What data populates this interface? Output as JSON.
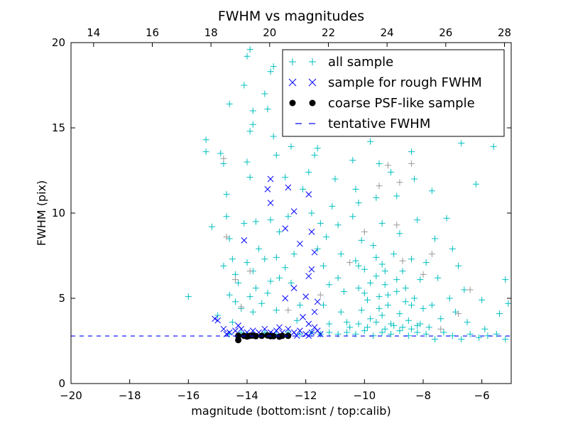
{
  "chart_data": {
    "type": "scatter",
    "title": "FWHM vs magnitudes",
    "xlabel": "magnitude (bottom:isnt / top:calib)",
    "ylabel": "FWHM (pix)",
    "xlim": [
      -20,
      -5
    ],
    "ylim": [
      0,
      20
    ],
    "top_xlim": [
      13.23,
      28.23
    ],
    "xticks": [
      -20,
      -18,
      -16,
      -14,
      -12,
      -10,
      -8,
      -6
    ],
    "xtick_labels": [
      "−20",
      "−18",
      "−16",
      "−14",
      "−12",
      "−10",
      "−8",
      "−6"
    ],
    "top_xticks": [
      14,
      16,
      18,
      20,
      22,
      24,
      26,
      28
    ],
    "top_xtick_labels": [
      "14",
      "16",
      "18",
      "20",
      "22",
      "24",
      "26",
      "28"
    ],
    "yticks": [
      0,
      5,
      10,
      15,
      20
    ],
    "ytick_labels": [
      "0",
      "5",
      "10",
      "15",
      "20"
    ],
    "grid": false,
    "legend_position": "top-right",
    "colors": {
      "all": "#00BFBF",
      "rough": "#0000FF",
      "coarse": "#000000",
      "tentative": "#0000FF",
      "faint": "#999999"
    },
    "tentative_fwhm": 2.79,
    "series": [
      {
        "name": "all sample",
        "marker": "+",
        "color": "#00BFBF",
        "points": [
          [
            -16.0,
            5.1
          ],
          [
            -15.4,
            14.3
          ],
          [
            -15.4,
            13.6
          ],
          [
            -15.2,
            9.2
          ],
          [
            -15.0,
            4.0
          ],
          [
            -14.9,
            13.5
          ],
          [
            -14.8,
            12.9
          ],
          [
            -14.7,
            11.1
          ],
          [
            -14.6,
            16.4
          ],
          [
            -14.7,
            9.8
          ],
          [
            -14.6,
            8.5
          ],
          [
            -14.8,
            6.9
          ],
          [
            -14.5,
            7.3
          ],
          [
            -14.4,
            6.4
          ],
          [
            -14.3,
            5.9
          ],
          [
            -14.6,
            5.2
          ],
          [
            -14.4,
            4.8
          ],
          [
            -14.2,
            4.4
          ],
          [
            -14.5,
            3.6
          ],
          [
            -14.0,
            19.2
          ],
          [
            -14.1,
            17.5
          ],
          [
            -13.9,
            19.6
          ],
          [
            -13.8,
            15.2
          ],
          [
            -13.9,
            14.8
          ],
          [
            -13.8,
            16.0
          ],
          [
            -14.0,
            13.0
          ],
          [
            -13.9,
            12.1
          ],
          [
            -14.1,
            9.4
          ],
          [
            -13.7,
            9.5
          ],
          [
            -14.0,
            7.1
          ],
          [
            -13.8,
            6.6
          ],
          [
            -13.6,
            7.9
          ],
          [
            -13.7,
            5.6
          ],
          [
            -13.9,
            5.1
          ],
          [
            -13.5,
            4.7
          ],
          [
            -13.8,
            4.2
          ],
          [
            -13.4,
            17.0
          ],
          [
            -13.2,
            18.3
          ],
          [
            -13.1,
            18.6
          ],
          [
            -13.3,
            16.1
          ],
          [
            -13.1,
            14.5
          ],
          [
            -13.0,
            13.4
          ],
          [
            -13.2,
            9.6
          ],
          [
            -12.9,
            8.9
          ],
          [
            -13.4,
            7.3
          ],
          [
            -13.0,
            7.4
          ],
          [
            -13.2,
            6.0
          ],
          [
            -12.9,
            6.2
          ],
          [
            -13.3,
            5.3
          ],
          [
            -13.0,
            4.3
          ],
          [
            -12.7,
            12.1
          ],
          [
            -12.5,
            13.9
          ],
          [
            -12.6,
            9.8
          ],
          [
            -12.4,
            7.6
          ],
          [
            -12.7,
            6.8
          ],
          [
            -12.5,
            5.9
          ],
          [
            -12.2,
            4.6
          ],
          [
            -12.3,
            3.7
          ],
          [
            -12.1,
            11.4
          ],
          [
            -11.9,
            12.4
          ],
          [
            -11.7,
            13.4
          ],
          [
            -11.6,
            13.8
          ],
          [
            -11.8,
            10.0
          ],
          [
            -11.5,
            9.4
          ],
          [
            -11.6,
            7.9
          ],
          [
            -11.3,
            8.6
          ],
          [
            -11.4,
            6.9
          ],
          [
            -11.2,
            5.8
          ],
          [
            -11.4,
            4.6
          ],
          [
            -11.2,
            3.5
          ],
          [
            -11.0,
            12.0
          ],
          [
            -11.1,
            10.4
          ],
          [
            -10.9,
            9.3
          ],
          [
            -10.8,
            7.6
          ],
          [
            -10.9,
            6.2
          ],
          [
            -10.7,
            5.4
          ],
          [
            -10.8,
            4.2
          ],
          [
            -10.6,
            3.6
          ],
          [
            -10.5,
            15.3
          ],
          [
            -10.4,
            13.1
          ],
          [
            -10.3,
            11.4
          ],
          [
            -10.2,
            10.6
          ],
          [
            -10.4,
            9.8
          ],
          [
            -10.1,
            8.4
          ],
          [
            -10.3,
            7.2
          ],
          [
            -10.0,
            6.7
          ],
          [
            -10.2,
            5.6
          ],
          [
            -9.9,
            4.9
          ],
          [
            -10.1,
            4.3
          ],
          [
            -9.8,
            3.8
          ],
          [
            -9.9,
            19.3
          ],
          [
            -9.7,
            17.8
          ],
          [
            -9.6,
            16.6
          ],
          [
            -9.8,
            14.2
          ],
          [
            -9.5,
            12.9
          ],
          [
            -9.6,
            10.9
          ],
          [
            -9.4,
            9.4
          ],
          [
            -9.7,
            8.1
          ],
          [
            -9.4,
            7.0
          ],
          [
            -9.6,
            6.3
          ],
          [
            -9.3,
            5.8
          ],
          [
            -9.5,
            5.1
          ],
          [
            -9.2,
            4.6
          ],
          [
            -9.4,
            4.0
          ],
          [
            -9.1,
            3.5
          ],
          [
            -9.0,
            14.9
          ],
          [
            -9.1,
            12.4
          ],
          [
            -8.9,
            11.0
          ],
          [
            -8.8,
            8.8
          ],
          [
            -9.0,
            7.6
          ],
          [
            -8.7,
            6.6
          ],
          [
            -8.9,
            5.4
          ],
          [
            -8.6,
            4.8
          ],
          [
            -8.8,
            4.1
          ],
          [
            -8.5,
            3.7
          ],
          [
            -8.6,
            17.3
          ],
          [
            -8.4,
            13.6
          ],
          [
            -8.3,
            12.0
          ],
          [
            -8.2,
            9.6
          ],
          [
            -8.4,
            7.3
          ],
          [
            -8.1,
            6.1
          ],
          [
            -8.3,
            5.0
          ],
          [
            -8.0,
            4.4
          ],
          [
            -8.2,
            3.4
          ],
          [
            -7.8,
            15.5
          ],
          [
            -7.7,
            11.3
          ],
          [
            -7.6,
            8.5
          ],
          [
            -7.9,
            7.1
          ],
          [
            -7.5,
            6.2
          ],
          [
            -7.7,
            4.6
          ],
          [
            -7.4,
            3.8
          ],
          [
            -7.2,
            9.7
          ],
          [
            -7.0,
            7.9
          ],
          [
            -7.1,
            5.0
          ],
          [
            -6.9,
            4.2
          ],
          [
            -6.7,
            14.1
          ],
          [
            -6.8,
            6.9
          ],
          [
            -6.6,
            5.5
          ],
          [
            -6.5,
            3.6
          ],
          [
            -6.2,
            11.7
          ],
          [
            -6.0,
            4.9
          ],
          [
            -5.9,
            3.2
          ],
          [
            -5.6,
            13.9
          ],
          [
            -5.4,
            4.1
          ],
          [
            -5.2,
            6.1
          ],
          [
            -5.1,
            4.7
          ],
          [
            -14.6,
            2.9
          ],
          [
            -14.2,
            3.0
          ],
          [
            -13.8,
            2.9
          ],
          [
            -13.4,
            3.0
          ],
          [
            -13.0,
            2.9
          ],
          [
            -12.6,
            3.0
          ],
          [
            -12.2,
            2.9
          ],
          [
            -11.8,
            3.0
          ],
          [
            -11.5,
            2.9
          ],
          [
            -11.2,
            3.0
          ],
          [
            -10.9,
            2.9
          ],
          [
            -10.6,
            3.0
          ],
          [
            -10.3,
            2.9
          ],
          [
            -10.0,
            3.1
          ],
          [
            -9.7,
            2.8
          ],
          [
            -9.4,
            3.0
          ],
          [
            -9.1,
            2.9
          ],
          [
            -8.8,
            3.1
          ],
          [
            -8.5,
            2.8
          ],
          [
            -8.2,
            3.0
          ],
          [
            -7.9,
            2.9
          ],
          [
            -7.6,
            2.6
          ],
          [
            -7.3,
            3.0
          ],
          [
            -7.0,
            2.8
          ],
          [
            -6.7,
            2.6
          ],
          [
            -6.4,
            2.9
          ],
          [
            -6.1,
            2.7
          ],
          [
            -5.8,
            2.8
          ],
          [
            -5.5,
            2.9
          ],
          [
            -5.2,
            2.6
          ],
          [
            -10.5,
            3.3
          ],
          [
            -10.2,
            3.5
          ],
          [
            -9.9,
            3.3
          ],
          [
            -9.6,
            3.6
          ],
          [
            -9.3,
            3.2
          ],
          [
            -9.0,
            3.4
          ],
          [
            -8.7,
            3.3
          ],
          [
            -8.4,
            3.2
          ],
          [
            -8.1,
            3.5
          ],
          [
            -7.8,
            3.3
          ],
          [
            -9.5,
            4.4
          ],
          [
            -9.2,
            5.2
          ],
          [
            -9.8,
            5.9
          ],
          [
            -8.9,
            6.1
          ],
          [
            -10.2,
            6.9
          ],
          [
            -9.6,
            7.4
          ],
          [
            -8.6,
            5.6
          ],
          [
            -9.3,
            6.6
          ],
          [
            -10.0,
            5.3
          ],
          [
            -8.4,
            4.6
          ]
        ]
      },
      {
        "name": "",
        "marker": "+",
        "color": "#999999",
        "points": [
          [
            -14.8,
            13.2
          ],
          [
            -14.7,
            8.6
          ],
          [
            -14.4,
            6.1
          ],
          [
            -14.2,
            4.5
          ],
          [
            -13.9,
            6.6
          ],
          [
            -12.6,
            4.3
          ],
          [
            -11.5,
            5.2
          ],
          [
            -10.5,
            7.1
          ],
          [
            -10.0,
            8.9
          ],
          [
            -9.5,
            11.6
          ],
          [
            -9.2,
            12.8
          ],
          [
            -8.9,
            9.3
          ],
          [
            -8.7,
            7.2
          ],
          [
            -8.4,
            12.9
          ],
          [
            -8.0,
            6.4
          ],
          [
            -7.7,
            7.6
          ],
          [
            -6.8,
            4.1
          ],
          [
            -6.4,
            5.5
          ],
          [
            -8.8,
            11.8
          ],
          [
            -7.4,
            3.2
          ]
        ]
      },
      {
        "name": "sample for rough FWHM",
        "marker": "x",
        "color": "#0000FF",
        "points": [
          [
            -15.1,
            3.8
          ],
          [
            -15.0,
            3.7
          ],
          [
            -14.1,
            8.4
          ],
          [
            -13.2,
            12.0
          ],
          [
            -13.3,
            11.4
          ],
          [
            -13.2,
            10.6
          ],
          [
            -12.6,
            11.5
          ],
          [
            -12.4,
            10.1
          ],
          [
            -11.9,
            11.1
          ],
          [
            -12.7,
            9.1
          ],
          [
            -11.8,
            8.9
          ],
          [
            -12.2,
            8.2
          ],
          [
            -11.7,
            7.7
          ],
          [
            -11.8,
            6.7
          ],
          [
            -11.9,
            6.3
          ],
          [
            -12.4,
            5.6
          ],
          [
            -12.7,
            5.0
          ],
          [
            -12.0,
            5.1
          ],
          [
            -11.6,
            4.8
          ],
          [
            -11.7,
            4.2
          ],
          [
            -12.1,
            3.9
          ],
          [
            -11.9,
            3.5
          ],
          [
            -14.8,
            3.2
          ],
          [
            -14.6,
            3.0
          ],
          [
            -14.4,
            3.1
          ],
          [
            -14.2,
            3.2
          ],
          [
            -14.0,
            3.0
          ],
          [
            -13.8,
            3.1
          ],
          [
            -13.6,
            3.0
          ],
          [
            -13.4,
            3.2
          ],
          [
            -13.2,
            3.0
          ],
          [
            -13.0,
            3.1
          ],
          [
            -12.8,
            3.0
          ],
          [
            -12.6,
            3.2
          ],
          [
            -12.4,
            3.0
          ],
          [
            -12.2,
            3.1
          ],
          [
            -12.0,
            2.9
          ],
          [
            -11.8,
            3.0
          ],
          [
            -11.6,
            3.1
          ],
          [
            -11.5,
            2.9
          ],
          [
            -14.7,
            2.9
          ],
          [
            -13.9,
            2.8
          ],
          [
            -13.1,
            2.9
          ],
          [
            -12.3,
            2.8
          ],
          [
            -11.9,
            2.8
          ],
          [
            -11.7,
            3.3
          ],
          [
            -12.9,
            3.3
          ],
          [
            -14.3,
            3.4
          ]
        ]
      },
      {
        "name": "coarse PSF-like sample",
        "marker": "o",
        "color": "#000000",
        "points": [
          [
            -14.3,
            2.55
          ],
          [
            -14.3,
            2.8
          ],
          [
            -14.1,
            2.8
          ],
          [
            -13.9,
            2.8
          ],
          [
            -13.7,
            2.78
          ],
          [
            -13.5,
            2.8
          ],
          [
            -13.3,
            2.82
          ],
          [
            -13.1,
            2.78
          ],
          [
            -12.9,
            2.75
          ],
          [
            -12.8,
            2.8
          ],
          [
            -12.6,
            2.8
          ],
          [
            -13.8,
            2.82
          ],
          [
            -14.0,
            2.76
          ],
          [
            -13.2,
            2.78
          ]
        ]
      }
    ],
    "legend": [
      {
        "label": "all sample",
        "marker": "+",
        "color": "#00BFBF"
      },
      {
        "label": "sample for rough FWHM",
        "marker": "x",
        "color": "#0000FF"
      },
      {
        "label": "coarse PSF-like sample",
        "marker": "o",
        "color": "#000000"
      },
      {
        "label": "tentative FWHM",
        "marker": "--",
        "color": "#0000FF"
      }
    ]
  }
}
